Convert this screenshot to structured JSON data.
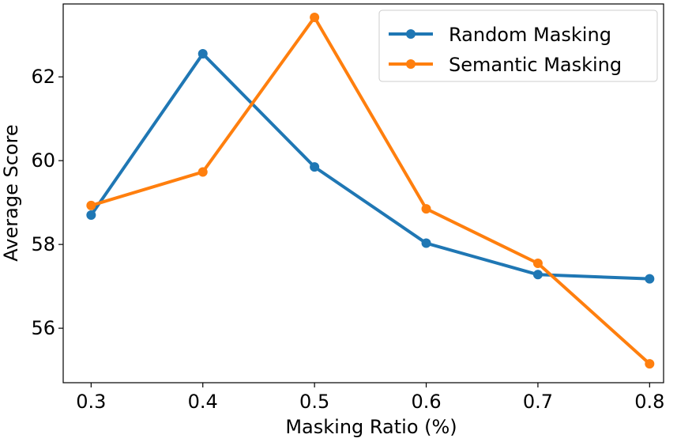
{
  "chart_data": {
    "type": "line",
    "x_label": "Masking Ratio (%)",
    "y_label": "Average Score",
    "x": [
      0.3,
      0.4,
      0.5,
      0.6,
      0.7,
      0.8
    ],
    "series": [
      {
        "name": "Random Masking",
        "color": "#1f77b4",
        "values": [
          58.7,
          62.55,
          59.85,
          58.03,
          57.28,
          57.18
        ]
      },
      {
        "name": "Semantic Masking",
        "color": "#ff7f0e",
        "values": [
          58.93,
          59.73,
          63.42,
          58.85,
          57.55,
          55.15
        ]
      }
    ],
    "xlim": [
      0.275,
      0.8125
    ],
    "ylim": [
      54.7,
      63.74
    ],
    "xticks": [
      0.3,
      0.4,
      0.5,
      0.6,
      0.7,
      0.8
    ],
    "yticks": [
      56,
      58,
      60,
      62
    ],
    "legend": "upper right",
    "grid": false
  }
}
